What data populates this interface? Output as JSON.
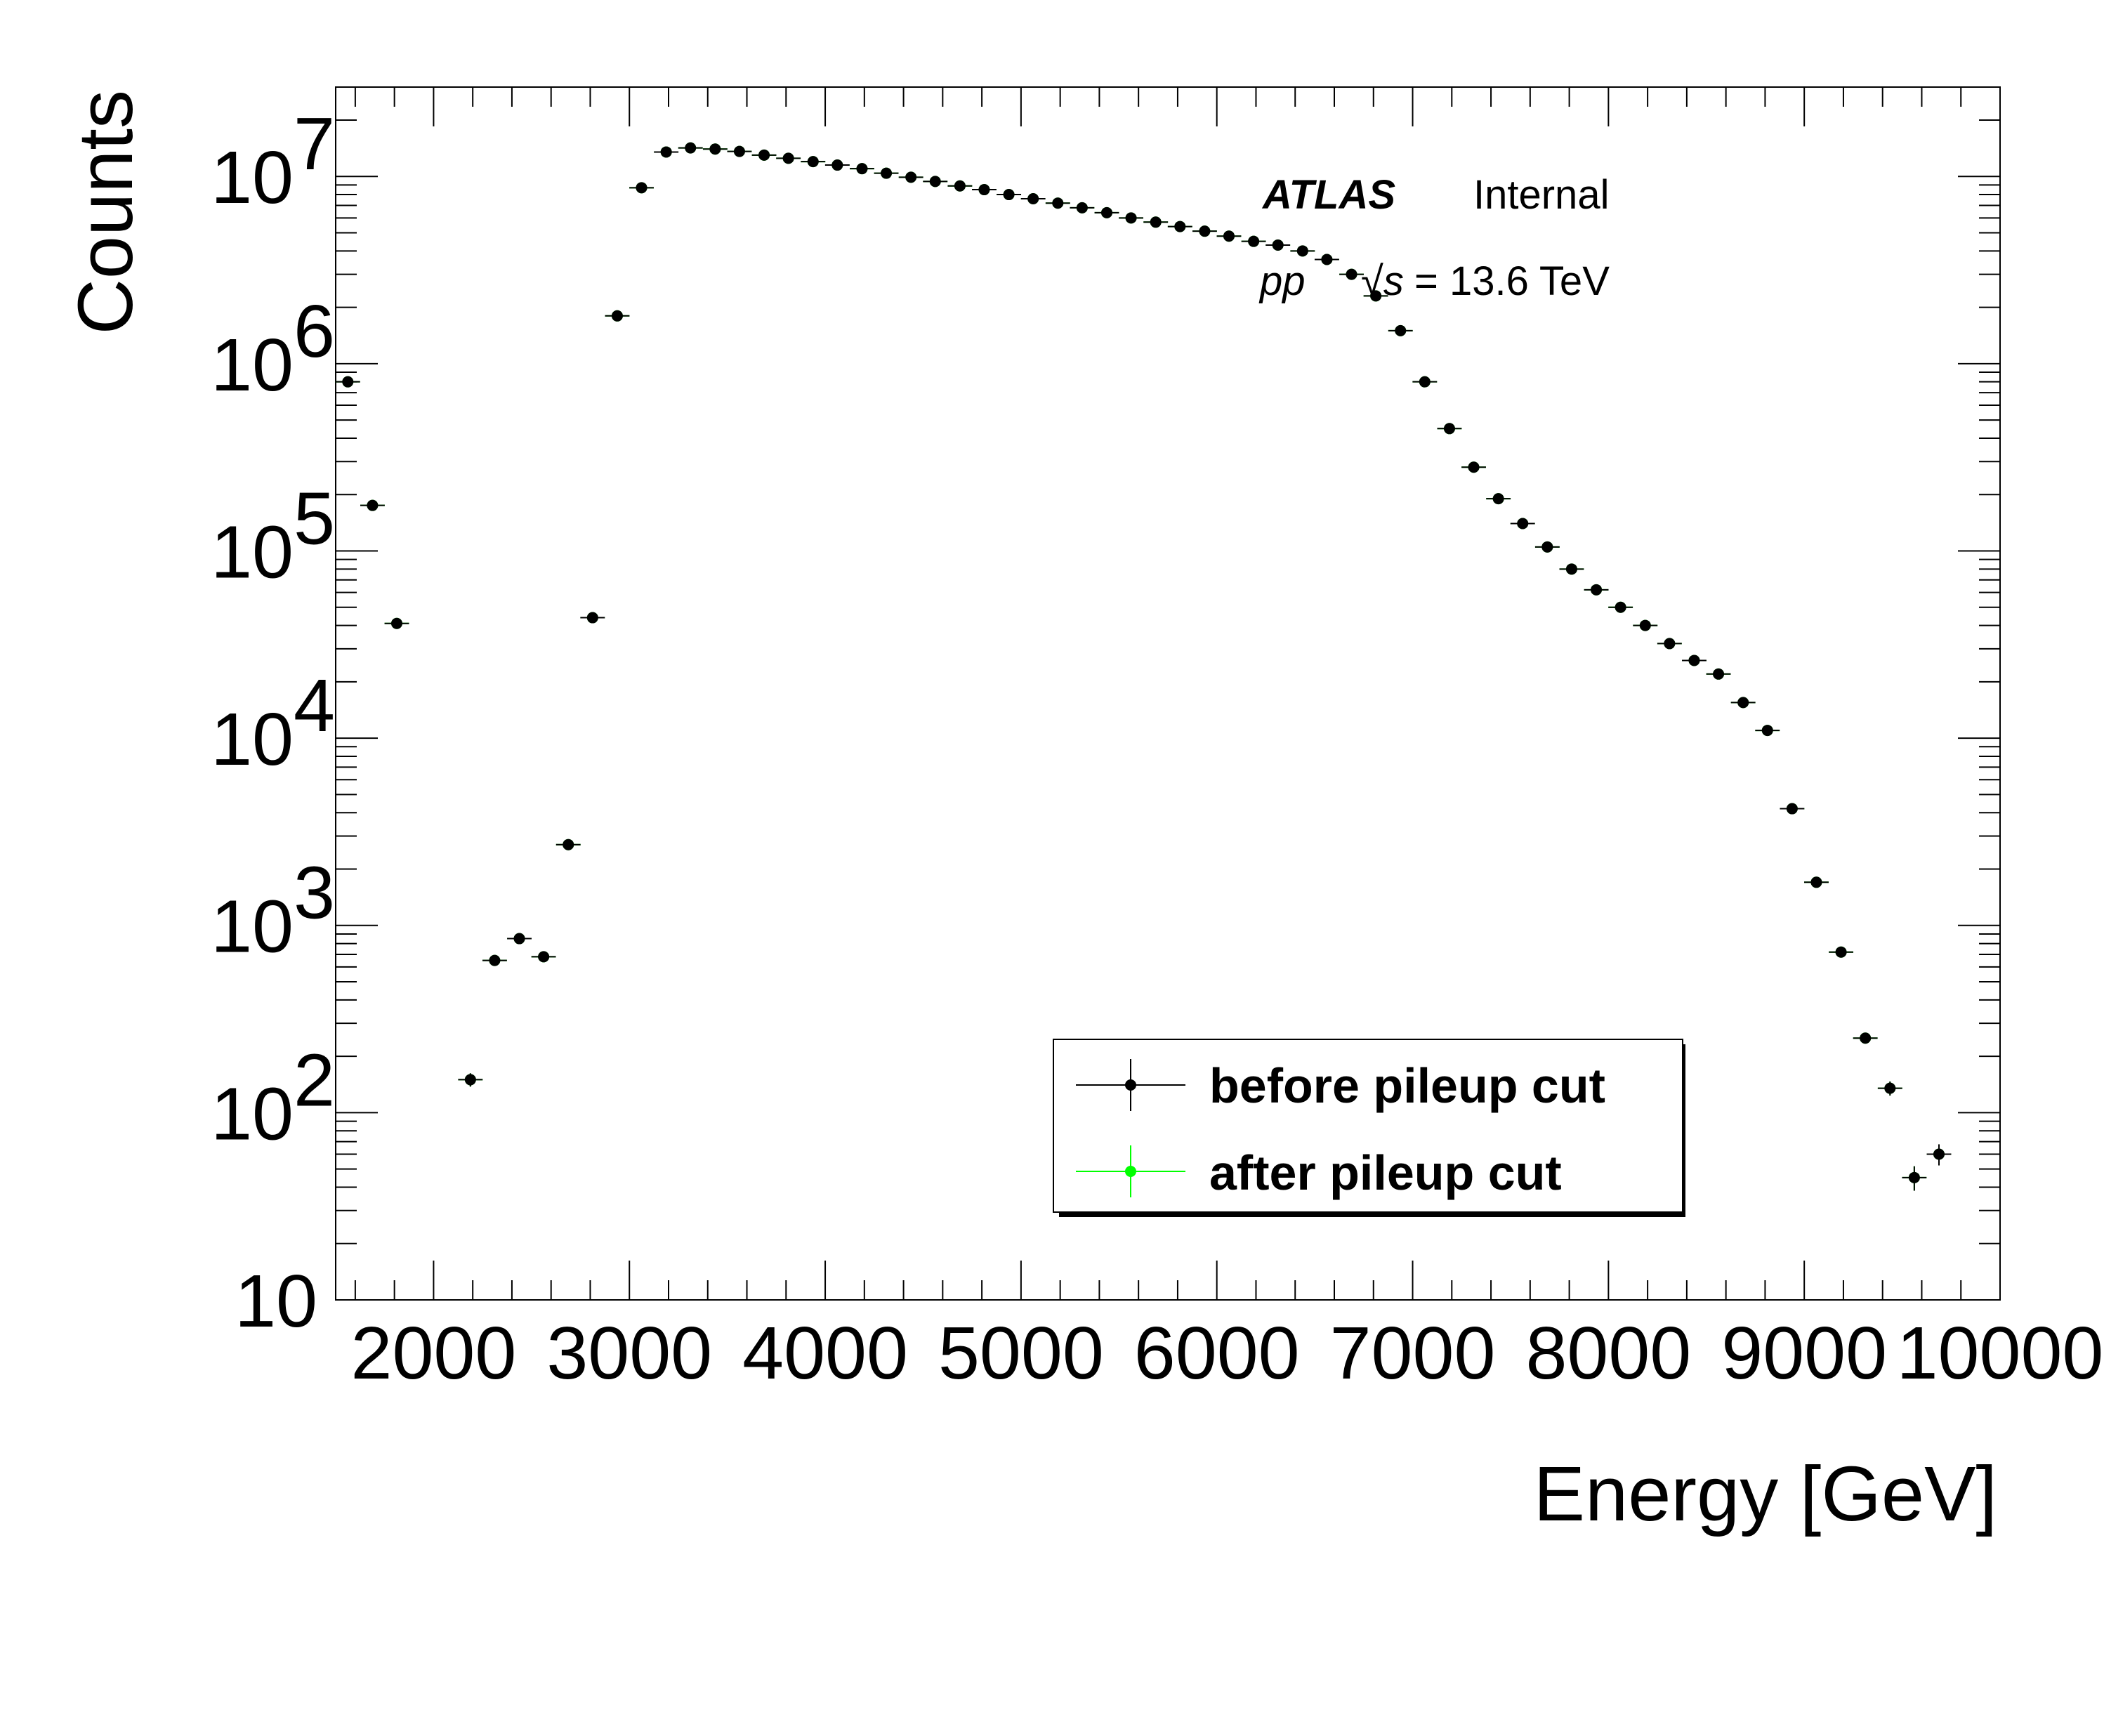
{
  "chart_data": {
    "type": "scatter",
    "title": "",
    "xlabel": "Energy [GeV]",
    "ylabel": "Counts",
    "xlim": [
      1500,
      10000
    ],
    "ylim": [
      10,
      30000000
    ],
    "yscale": "log",
    "grid": false,
    "legend_position": "bottom-right",
    "x_tick_labels": [
      "2000",
      "3000",
      "4000",
      "5000",
      "6000",
      "7000",
      "8000",
      "9000",
      "10000"
    ],
    "y_tick_labels": [
      {
        "base": "10",
        "exp": ""
      },
      {
        "base": "10",
        "exp": "2"
      },
      {
        "base": "10",
        "exp": "3"
      },
      {
        "base": "10",
        "exp": "4"
      },
      {
        "base": "10",
        "exp": "5"
      },
      {
        "base": "10",
        "exp": "6"
      },
      {
        "base": "10",
        "exp": "7"
      }
    ],
    "annotations": {
      "experiment": "ATLAS",
      "status": "Internal",
      "process": "pp",
      "sqrt_s_symbol": "√s",
      "energy_text": "= 13.6 TeV"
    },
    "bin_half_width": 62.5,
    "series": [
      {
        "name": "before pileup cut",
        "color": "#000000",
        "points": [
          [
            1562,
            800000
          ],
          [
            1688,
            175000
          ],
          [
            1812,
            41000
          ],
          [
            2188,
            150
          ],
          [
            2312,
            650
          ],
          [
            2438,
            850
          ],
          [
            2562,
            680
          ],
          [
            2688,
            2700
          ],
          [
            2812,
            44000
          ],
          [
            2938,
            1800000
          ],
          [
            3062,
            8700000
          ],
          [
            3188,
            13500000
          ],
          [
            3312,
            14200000
          ],
          [
            3438,
            14000000
          ],
          [
            3562,
            13600000
          ],
          [
            3688,
            13000000
          ],
          [
            3812,
            12500000
          ],
          [
            3938,
            12000000
          ],
          [
            4062,
            11500000
          ],
          [
            4188,
            11000000
          ],
          [
            4312,
            10400000
          ],
          [
            4438,
            9900000
          ],
          [
            4562,
            9400000
          ],
          [
            4688,
            8900000
          ],
          [
            4812,
            8500000
          ],
          [
            4938,
            8000000
          ],
          [
            5062,
            7600000
          ],
          [
            5188,
            7200000
          ],
          [
            5312,
            6800000
          ],
          [
            5438,
            6400000
          ],
          [
            5562,
            6000000
          ],
          [
            5688,
            5700000
          ],
          [
            5812,
            5400000
          ],
          [
            5938,
            5100000
          ],
          [
            6062,
            4800000
          ],
          [
            6188,
            4500000
          ],
          [
            6312,
            4300000
          ],
          [
            6438,
            4000000
          ],
          [
            6562,
            3600000
          ],
          [
            6688,
            3000000
          ],
          [
            6812,
            2300000
          ],
          [
            6938,
            1500000
          ],
          [
            7062,
            800000
          ],
          [
            7188,
            450000
          ],
          [
            7312,
            280000
          ],
          [
            7438,
            190000
          ],
          [
            7562,
            140000
          ],
          [
            7688,
            105000
          ],
          [
            7812,
            80000
          ],
          [
            7938,
            62000
          ],
          [
            8062,
            50000
          ],
          [
            8188,
            40000
          ],
          [
            8312,
            32000
          ],
          [
            8438,
            26000
          ],
          [
            8562,
            22000
          ],
          [
            8688,
            15500
          ],
          [
            8812,
            11000
          ],
          [
            8938,
            4200
          ],
          [
            9062,
            1700
          ],
          [
            9188,
            720
          ],
          [
            9312,
            250
          ],
          [
            9438,
            135
          ],
          [
            9562,
            45
          ],
          [
            9688,
            60
          ]
        ]
      },
      {
        "name": "after pileup cut",
        "color": "#00ff00",
        "points": [
          [
            1562,
            800000
          ],
          [
            1688,
            175000
          ],
          [
            1812,
            41000
          ],
          [
            2188,
            150
          ],
          [
            2312,
            650
          ],
          [
            2438,
            850
          ],
          [
            2562,
            680
          ],
          [
            2688,
            2700
          ],
          [
            2812,
            44000
          ],
          [
            2938,
            1800000
          ],
          [
            3062,
            8700000
          ],
          [
            3188,
            13500000
          ],
          [
            3312,
            14200000
          ],
          [
            3438,
            14000000
          ],
          [
            3562,
            13600000
          ],
          [
            3688,
            13000000
          ],
          [
            3812,
            12500000
          ],
          [
            3938,
            12000000
          ],
          [
            4062,
            11500000
          ],
          [
            4188,
            11000000
          ],
          [
            4312,
            10400000
          ],
          [
            4438,
            9900000
          ],
          [
            4562,
            9400000
          ],
          [
            4688,
            8900000
          ],
          [
            4812,
            8500000
          ],
          [
            4938,
            8000000
          ],
          [
            5062,
            7600000
          ],
          [
            5188,
            7200000
          ],
          [
            5312,
            6800000
          ],
          [
            5438,
            6400000
          ],
          [
            5562,
            6000000
          ],
          [
            5688,
            5700000
          ],
          [
            5812,
            5400000
          ],
          [
            5938,
            5100000
          ],
          [
            6062,
            4800000
          ],
          [
            6188,
            4500000
          ],
          [
            6312,
            4300000
          ],
          [
            6438,
            4000000
          ],
          [
            6562,
            3600000
          ],
          [
            6688,
            3000000
          ],
          [
            6812,
            2300000
          ],
          [
            6938,
            1500000
          ],
          [
            7062,
            800000
          ],
          [
            7188,
            450000
          ],
          [
            7312,
            280000
          ],
          [
            7438,
            190000
          ],
          [
            7562,
            140000
          ],
          [
            7688,
            105000
          ],
          [
            7812,
            80000
          ],
          [
            7938,
            62000
          ],
          [
            8062,
            50000
          ],
          [
            8188,
            40000
          ],
          [
            8312,
            32000
          ],
          [
            8438,
            26000
          ],
          [
            8562,
            22000
          ],
          [
            8688,
            15500
          ],
          [
            8812,
            11000
          ],
          [
            8938,
            4200
          ],
          [
            9062,
            1700
          ],
          [
            9188,
            720
          ],
          [
            9312,
            250
          ],
          [
            9438,
            135
          ],
          [
            9562,
            45
          ],
          [
            9688,
            60
          ]
        ]
      }
    ]
  }
}
